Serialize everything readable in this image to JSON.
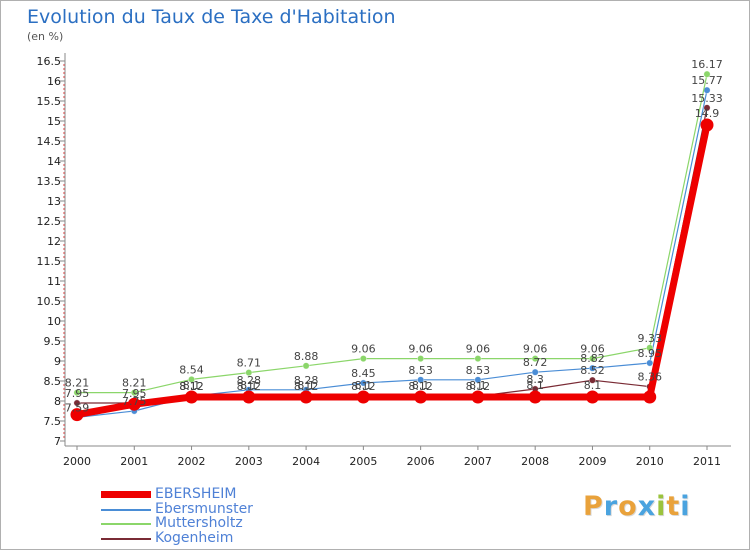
{
  "title": "Evolution du Taux de Taxe d'Habitation",
  "subtitle": "(en %)",
  "logo": {
    "text": "Proxiti",
    "letters": [
      "P",
      "r",
      "o",
      "x",
      "i",
      "t",
      "i"
    ],
    "colors": [
      "#e9a23b",
      "#4aa3df",
      "#e9a23b",
      "#4aa3df",
      "#9bc33d",
      "#e9a23b",
      "#4aa3df"
    ]
  },
  "chart_data": {
    "type": "line",
    "title": "Evolution du Taux de Taxe d'Habitation",
    "subtitle": "(en %)",
    "xlabel": "",
    "ylabel": "",
    "x": [
      "2000",
      "2001",
      "2002",
      "2003",
      "2004",
      "2005",
      "2006",
      "2007",
      "2008",
      "2009",
      "2010",
      "2011"
    ],
    "ylim": [
      7,
      16.5
    ],
    "yticks": [
      "7",
      "7.5",
      "8",
      "8.5",
      "9",
      "9.5",
      "10",
      "10.5",
      "11",
      "11.5",
      "12",
      "12.5",
      "13",
      "13.5",
      "14",
      "14.5",
      "15",
      "15.5",
      "16",
      "16.5"
    ],
    "grid": false,
    "legend_position": "bottom-left",
    "series": [
      {
        "name": "EBERSHEIM",
        "color": "#ee0000",
        "width": 7,
        "values": [
          7.66,
          7.92,
          8.1,
          8.1,
          8.1,
          8.1,
          8.1,
          8.1,
          8.1,
          8.1,
          8.1,
          14.9
        ],
        "labels": [
          "",
          "",
          "8.1",
          "8.1",
          "8.1",
          "8.1",
          "8.1",
          "8.1",
          "8.1",
          "8.1",
          "",
          "14.9"
        ]
      },
      {
        "name": "Ebersmunster",
        "color": "#4a8dd6",
        "width": 1.2,
        "values": [
          7.59,
          7.75,
          8.12,
          8.28,
          8.28,
          8.45,
          8.53,
          8.53,
          8.72,
          8.82,
          8.95,
          15.77
        ],
        "labels": [
          "7.59",
          "7.75",
          "8.12",
          "8.28",
          "8.28",
          "8.45",
          "8.53",
          "8.53",
          "8.72",
          "8.82",
          "8.95",
          "15.77"
        ]
      },
      {
        "name": "Muttersholtz",
        "color": "#8bd66a",
        "width": 1.2,
        "values": [
          8.21,
          8.21,
          8.54,
          8.71,
          8.88,
          9.06,
          9.06,
          9.06,
          9.06,
          9.06,
          9.33,
          16.17
        ],
        "labels": [
          "8.21",
          "8.21",
          "8.54",
          "8.71",
          "8.88",
          "9.06",
          "9.06",
          "9.06",
          "9.06",
          "9.06",
          "9.33",
          "16.17"
        ]
      },
      {
        "name": "Kogenheim",
        "color": "#7a2b35",
        "width": 1.2,
        "values": [
          7.95,
          7.95,
          8.12,
          8.12,
          8.12,
          8.12,
          8.12,
          8.12,
          8.3,
          8.52,
          8.36,
          15.33
        ],
        "labels": [
          "7.95",
          "7.95",
          "8.12",
          "8.12",
          "8.12",
          "8.12",
          "8.12",
          "8.12",
          "8.3",
          "8.52",
          "8.36",
          "15.33"
        ]
      }
    ]
  }
}
